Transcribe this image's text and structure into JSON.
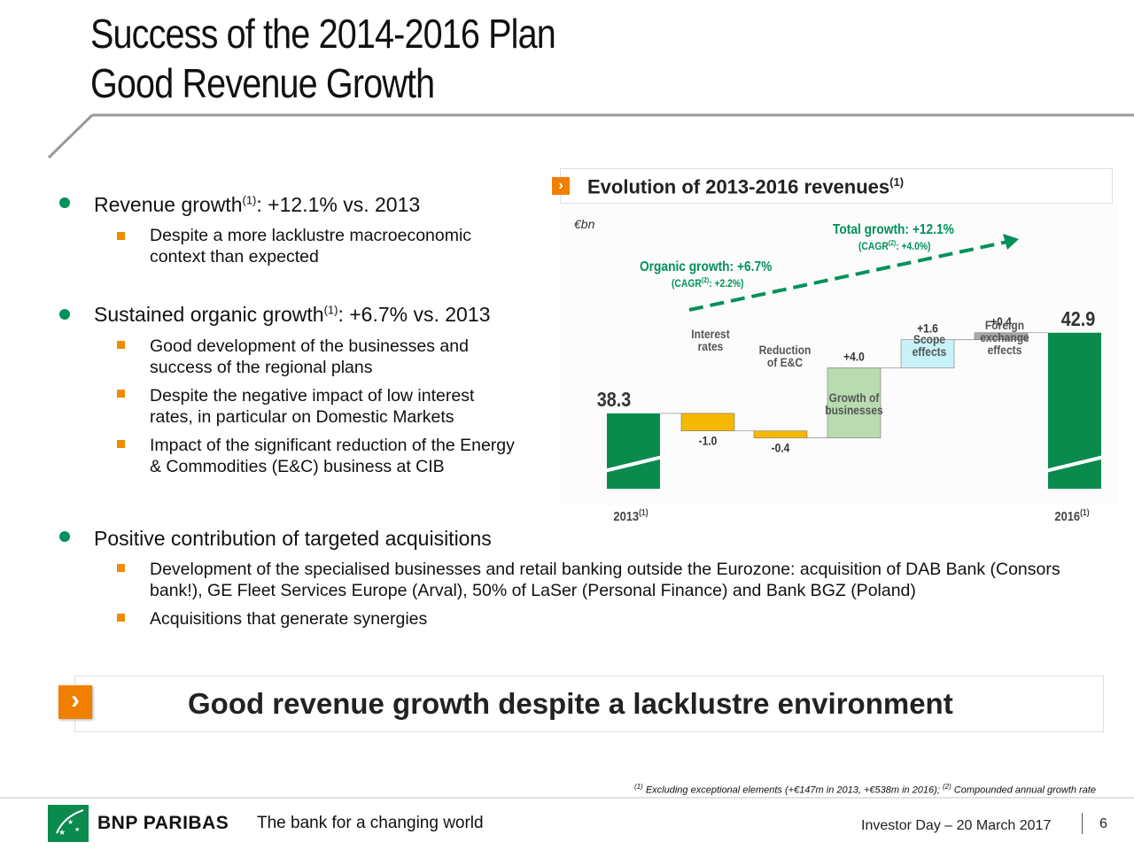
{
  "title": {
    "line1": "Success of the 2014-2016 Plan",
    "line2": "Good Revenue Growth"
  },
  "bullets": {
    "b1": {
      "pre": "Revenue growth",
      "sup": "(1)",
      "post": ": +12.1% vs. 2013"
    },
    "b1_sub1": "Despite a more lacklustre macroeconomic context than expected",
    "b2": {
      "pre": "Sustained organic growth",
      "sup": "(1)",
      "post": ": +6.7% vs. 2013"
    },
    "b2_sub1": "Good development of the businesses and success of the regional plans",
    "b2_sub2": "Despite the negative impact of low interest rates, in particular on Domestic Markets",
    "b2_sub3": "Impact of the significant reduction of the Energy & Commodities (E&C) business at CIB",
    "b3": "Positive contribution of targeted acquisitions",
    "b3_sub1": "Development of the specialised businesses and retail banking outside the Eurozone: acquisition of DAB Bank (Consors bank!), GE Fleet Services Europe (Arval), 50% of LaSer (Personal Finance) and Bank BGZ (Poland)",
    "b3_sub2": "Acquisitions that generate synergies"
  },
  "chart_title": {
    "text": "Evolution of 2013-2016 revenues",
    "sup": "(1)"
  },
  "chart_data": {
    "type": "bar",
    "subtype": "waterfall",
    "unit": "€bn",
    "categories": [
      "2013(1)",
      "Interest rates",
      "Reduction of E&C",
      "Growth of businesses",
      "Scope effects",
      "Foreign exchange effects",
      "2016(1)"
    ],
    "values": [
      38.3,
      -1.0,
      -0.4,
      4.0,
      1.6,
      0.4,
      42.9
    ],
    "value_labels": [
      "38.3",
      "-1.0",
      "-0.4",
      "+4.0",
      "+1.6",
      "+0.4",
      "42.9"
    ],
    "bar_colors": [
      "#0b8a4e",
      "#f5b800",
      "#f5b800",
      "#b8dcb0",
      "#c8f2fa",
      "#a8a8a8",
      "#0b8a4e"
    ],
    "x_labels": {
      "start": {
        "text": "2013",
        "sup": "(1)"
      },
      "end": {
        "text": "2016",
        "sup": "(1)"
      }
    },
    "step_labels": [
      [
        "Interest",
        "rates"
      ],
      [
        "Reduction",
        "of  E&C"
      ],
      [
        "Growth of",
        "businesses"
      ],
      [
        "Scope",
        "effects"
      ],
      [
        "Foreign",
        "exchange",
        "effects"
      ]
    ],
    "annotations": {
      "total_growth": "Total growth: +12.1%",
      "total_cagr": {
        "pre": "(CAGR",
        "sup": "(2)",
        "post": ": +4.0%)"
      },
      "organic_growth": "Organic growth: +6.7%",
      "organic_cagr": {
        "pre": "(CAGR",
        "sup": "(2)",
        "post": ": +2.2%)"
      }
    },
    "axis_break": true,
    "colors": {
      "green": "#00915a",
      "accent_orange": "#f07f00"
    }
  },
  "banner": {
    "text": "Good revenue growth despite a lacklustre environment",
    "arrow": "›"
  },
  "footnote": {
    "sup1": "(1)",
    "text1": " Excluding exceptional elements (+€147m in 2013, +€538m in 2016); ",
    "sup2": "(2)",
    "text2": " Compounded annual growth rate"
  },
  "footer": {
    "brand": "BNP PARIBAS",
    "tagline": "The bank for a changing world",
    "event": "Investor Day – 20 March 2017",
    "page": "6"
  },
  "icons": {
    "chevron": "›"
  }
}
